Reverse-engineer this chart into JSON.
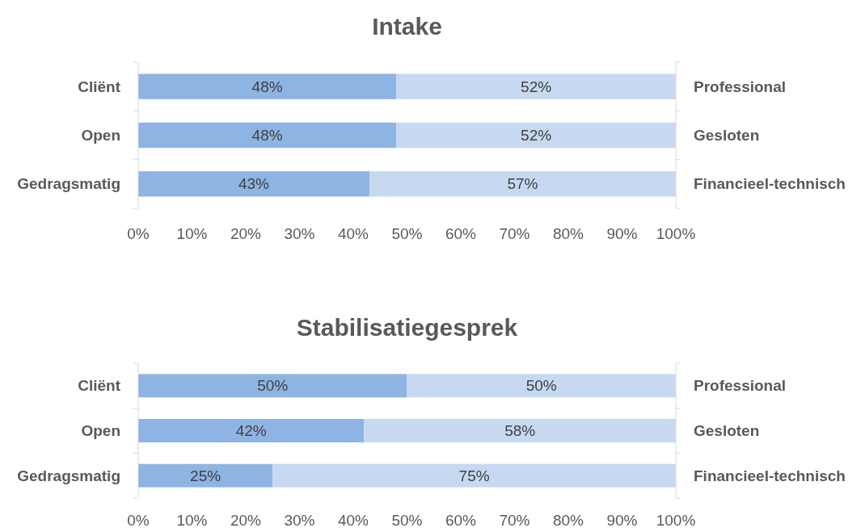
{
  "chart_data": [
    {
      "type": "bar",
      "title": "Intake",
      "orientation": "horizontal",
      "stacked": true,
      "categories": [
        "Cliënt",
        "Open",
        "Gedragsmatig"
      ],
      "y2_categories": [
        "Professional",
        "Gesloten",
        "Financieel-technisch"
      ],
      "series": [
        {
          "color": "#8eb4e3",
          "values": [
            48,
            48,
            43
          ],
          "value_labels": [
            "48%",
            "48%",
            "43%"
          ]
        },
        {
          "color": "#c6d9f1",
          "values": [
            52,
            52,
            57
          ],
          "value_labels": [
            "52%",
            "52%",
            "57%"
          ]
        }
      ],
      "xlim": [
        0,
        100
      ],
      "xticks": [
        {
          "value": 0,
          "label": "0%"
        },
        {
          "value": 10,
          "label": "10%"
        },
        {
          "value": 20,
          "label": "20%"
        },
        {
          "value": 30,
          "label": "30%"
        },
        {
          "value": 40,
          "label": "40%"
        },
        {
          "value": 50,
          "label": "50%"
        },
        {
          "value": 60,
          "label": "60%"
        },
        {
          "value": 70,
          "label": "70%"
        },
        {
          "value": 80,
          "label": "80%"
        },
        {
          "value": 90,
          "label": "90%"
        },
        {
          "value": 100,
          "label": "100%"
        }
      ],
      "grid": false
    },
    {
      "type": "bar",
      "title": "Stabilisatiegesprek",
      "orientation": "horizontal",
      "stacked": true,
      "categories": [
        "Cliënt",
        "Open",
        "Gedragsmatig"
      ],
      "y2_categories": [
        "Professional",
        "Gesloten",
        "Financieel-technisch"
      ],
      "series": [
        {
          "color": "#8eb4e3",
          "values": [
            50,
            42,
            25
          ],
          "value_labels": [
            "50%",
            "42%",
            "25%"
          ]
        },
        {
          "color": "#c6d9f1",
          "values": [
            50,
            58,
            75
          ],
          "value_labels": [
            "50%",
            "58%",
            "75%"
          ]
        }
      ],
      "xlim": [
        0,
        100
      ],
      "xticks": [
        {
          "value": 0,
          "label": "0%"
        },
        {
          "value": 10,
          "label": "10%"
        },
        {
          "value": 20,
          "label": "20%"
        },
        {
          "value": 30,
          "label": "30%"
        },
        {
          "value": 40,
          "label": "40%"
        },
        {
          "value": 50,
          "label": "50%"
        },
        {
          "value": 60,
          "label": "60%"
        },
        {
          "value": 70,
          "label": "70%"
        },
        {
          "value": 80,
          "label": "80%"
        },
        {
          "value": 90,
          "label": "90%"
        },
        {
          "value": 100,
          "label": "100%"
        }
      ],
      "grid": false
    }
  ]
}
